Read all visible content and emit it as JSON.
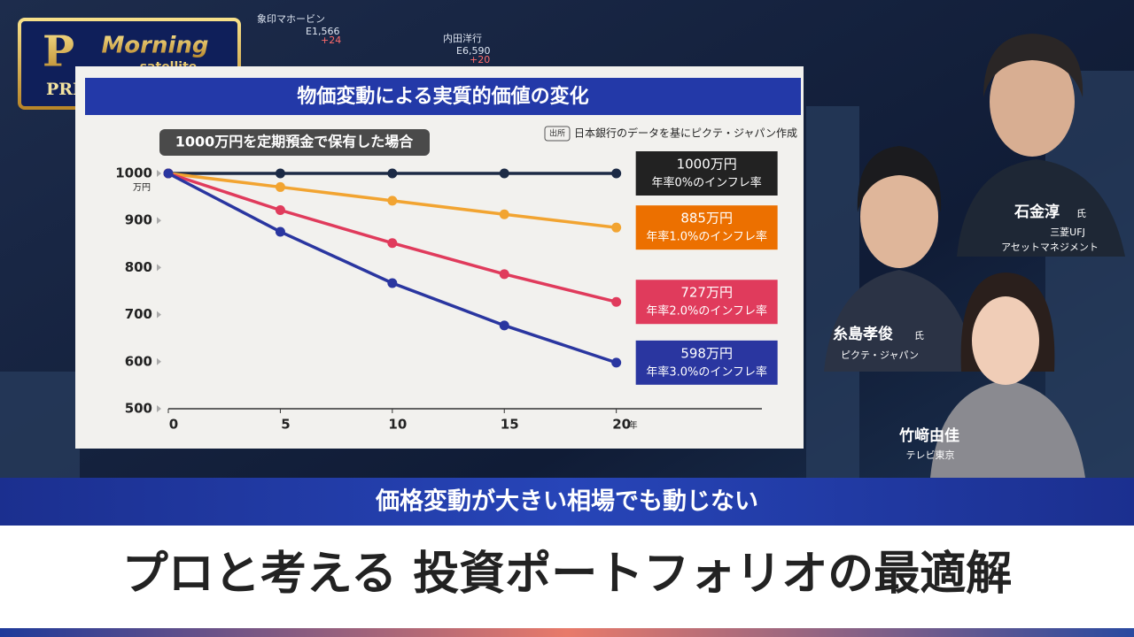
{
  "logo": {
    "letter": "P",
    "line1": "Morning",
    "line2": "satellite",
    "line3": "PREMIUMセミナー"
  },
  "background_tickers": [
    {
      "name": "象印マホービン",
      "price": "E1,566",
      "change": "+24"
    },
    {
      "name": "内田洋行",
      "price": "E6,590",
      "change": "+20"
    }
  ],
  "chart_data": {
    "type": "line",
    "title": "物価変動による実質的価値の変化",
    "subtitle": "1000万円を定期預金で保有した場合",
    "source_tag": "出所",
    "source": "日本銀行のデータを基にピクテ・ジャパン作成",
    "x": [
      0,
      5,
      10,
      15,
      20
    ],
    "xlim": [
      0,
      26.5
    ],
    "xticks": [
      0,
      5,
      10,
      15,
      20
    ],
    "x_unit": "年",
    "ylim": [
      500,
      1000
    ],
    "yticks": [
      500,
      600,
      700,
      800,
      900,
      1000
    ],
    "y_unit": "万円",
    "series": [
      {
        "name": "年率0%のインフレ率",
        "color": "#1c2a45",
        "label_color": "#222222",
        "values": [
          1000,
          1000,
          1000,
          1000,
          1000
        ],
        "value_labels": [
          null,
          null,
          null,
          null,
          "1000万円"
        ]
      },
      {
        "name": "年率1.0%のインフレ率",
        "color": "#f2a431",
        "label_color": "#ec7000",
        "values": [
          1000,
          971,
          942,
          913,
          885
        ],
        "value_labels": [
          null,
          null,
          null,
          null,
          "885万円"
        ]
      },
      {
        "name": "年率2.0%のインフレ率",
        "color": "#e03b5c",
        "label_color": "#e03b5c",
        "values": [
          1000,
          922,
          852,
          786,
          727
        ],
        "value_labels": [
          null,
          null,
          null,
          null,
          "727万円"
        ]
      },
      {
        "name": "年率3.0%のインフレ率",
        "color": "#2a36a0",
        "label_color": "#2a36a0",
        "values": [
          1000,
          876,
          767,
          677,
          598
        ],
        "value_labels": [
          null,
          null,
          null,
          null,
          "598万円"
        ]
      }
    ]
  },
  "speakers": [
    {
      "name": "石金淳",
      "honorific": "氏",
      "affiliation": [
        "三菱UFJ",
        "アセットマネジメント"
      ]
    },
    {
      "name": "糸島孝俊",
      "honorific": "氏",
      "affiliation": [
        "ピクテ・ジャパン"
      ]
    },
    {
      "name": "竹﨑由佳",
      "affiliation": [
        "テレビ東京"
      ]
    }
  ],
  "banner": {
    "subtitle": "価格変動が大きい相場でも動じない",
    "title": "プロと考える 投資ポートフォリオの最適解"
  }
}
